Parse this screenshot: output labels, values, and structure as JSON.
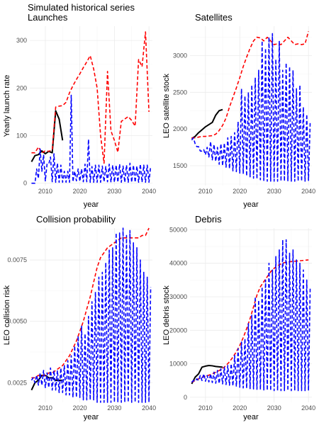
{
  "figure": {
    "title": "Simulated historical series"
  },
  "colors": {
    "historical": "#000000",
    "optimal": "#ff0000",
    "sim": "#0000ff"
  },
  "chart_data": [
    {
      "id": "launches",
      "type": "line",
      "title": "Launches",
      "xlabel": "year",
      "ylabel": "Yearly launch rate",
      "xlim": [
        2005.5,
        2041
      ],
      "ylim": [
        -5,
        330
      ],
      "xticks": [
        2010,
        2020,
        2030,
        2040
      ],
      "yticks": [
        0,
        100,
        200,
        300
      ],
      "series": [
        {
          "role": "historical",
          "style": "solid",
          "x": [
            2006,
            2007,
            2008,
            2009,
            2010,
            2011,
            2012,
            2013,
            2014,
            2015
          ],
          "y": [
            45,
            58,
            60,
            68,
            62,
            67,
            64,
            152,
            135,
            90
          ]
        },
        {
          "role": "optimal",
          "style": "dashed",
          "x": [
            2006,
            2007,
            2008,
            2009,
            2010,
            2011,
            2012,
            2013,
            2014,
            2015,
            2016,
            2017,
            2018,
            2019,
            2020,
            2021,
            2022,
            2023,
            2024,
            2025,
            2026,
            2027,
            2028,
            2029,
            2030,
            2031,
            2032,
            2033,
            2034,
            2035,
            2036,
            2037,
            2038,
            2039,
            2040
          ],
          "y": [
            64,
            64,
            76,
            64,
            68,
            67,
            70,
            160,
            162,
            163,
            170,
            190,
            205,
            218,
            230,
            243,
            255,
            268,
            240,
            200,
            100,
            42,
            235,
            110,
            90,
            65,
            130,
            135,
            140,
            132,
            120,
            260,
            245,
            318,
            150
          ]
        },
        {
          "role": "sim",
          "style": "dashed",
          "x": [
            2006,
            2007,
            2008,
            2009,
            2010,
            2011,
            2012,
            2013,
            2014,
            2015,
            2016,
            2017,
            2018,
            2019,
            2020,
            2021,
            2022,
            2023,
            2024,
            2025,
            2026,
            2027,
            2028,
            2029,
            2030,
            2031,
            2032,
            2033,
            2034,
            2035,
            2036,
            2037,
            2038,
            2039,
            2040
          ],
          "y_low": [
            0,
            0,
            10,
            25,
            5,
            40,
            3,
            2,
            2,
            2,
            2,
            2,
            3,
            5,
            4,
            3,
            3,
            2,
            2,
            2,
            2,
            3,
            3,
            2,
            2,
            2,
            2,
            2,
            2,
            2,
            2,
            2,
            2,
            2,
            2
          ],
          "y_high": [
            0,
            30,
            72,
            60,
            40,
            55,
            62,
            42,
            38,
            25,
            25,
            185,
            25,
            30,
            30,
            40,
            92,
            35,
            38,
            38,
            36,
            35,
            40,
            38,
            38,
            40,
            36,
            38,
            42,
            38,
            36,
            40,
            38,
            38,
            36
          ]
        }
      ]
    },
    {
      "id": "satellites",
      "type": "line",
      "title": "Satellites",
      "xlabel": "year",
      "ylabel": "LEO satellite stock",
      "xlim": [
        2005.5,
        2041
      ],
      "ylim": [
        1230,
        3400
      ],
      "xticks": [
        2010,
        2020,
        2030,
        2040
      ],
      "yticks": [
        1500,
        2000,
        2500,
        3000
      ],
      "series": [
        {
          "role": "historical",
          "style": "solid",
          "x": [
            2006,
            2007,
            2008,
            2009,
            2010,
            2011,
            2012,
            2013,
            2014,
            2015
          ],
          "y": [
            1870,
            1900,
            1950,
            1990,
            2030,
            2060,
            2090,
            2190,
            2250,
            2265
          ]
        },
        {
          "role": "optimal",
          "style": "dashed",
          "x": [
            2006,
            2007,
            2008,
            2009,
            2010,
            2011,
            2012,
            2013,
            2014,
            2015,
            2016,
            2017,
            2018,
            2019,
            2020,
            2021,
            2022,
            2023,
            2024,
            2025,
            2026,
            2027,
            2028,
            2029,
            2030,
            2031,
            2032,
            2033,
            2034,
            2035,
            2036,
            2037,
            2038,
            2039,
            2040
          ],
          "y": [
            1880,
            1880,
            1890,
            1900,
            1900,
            1905,
            1910,
            1930,
            1980,
            2050,
            2150,
            2300,
            2430,
            2560,
            2700,
            2850,
            2980,
            3100,
            3200,
            3250,
            3240,
            3200,
            3250,
            3200,
            3150,
            3160,
            3150,
            3200,
            3250,
            3200,
            3150,
            3160,
            3150,
            3160,
            3330
          ]
        },
        {
          "role": "sim",
          "style": "dashed",
          "x": [
            2006,
            2007,
            2008,
            2009,
            2010,
            2011,
            2012,
            2013,
            2014,
            2015,
            2016,
            2017,
            2018,
            2019,
            2020,
            2021,
            2022,
            2023,
            2024,
            2025,
            2026,
            2027,
            2028,
            2029,
            2030,
            2031,
            2032,
            2033,
            2034,
            2035,
            2036,
            2037,
            2038,
            2039,
            2040
          ],
          "y_low": [
            1850,
            1800,
            1760,
            1700,
            1650,
            1620,
            1580,
            1560,
            1520,
            1500,
            1480,
            1460,
            1430,
            1420,
            1400,
            1390,
            1360,
            1350,
            1330,
            1320,
            1310,
            1300,
            1290,
            1290,
            1290,
            1290,
            1290,
            1290,
            1290,
            1290,
            1290,
            1290,
            1290,
            1290,
            1300
          ],
          "y_high": [
            1880,
            1760,
            1700,
            1720,
            1750,
            1830,
            1790,
            1750,
            1800,
            1810,
            1880,
            1900,
            1950,
            2100,
            2550,
            2450,
            2500,
            2600,
            2700,
            2800,
            3200,
            3100,
            3250,
            3300,
            2950,
            3200,
            2800,
            2900,
            2850,
            2800,
            2550,
            2600,
            2300,
            2200,
            2100
          ]
        }
      ]
    },
    {
      "id": "collision",
      "type": "line",
      "title": "Collision probability",
      "xlabel": "year",
      "ylabel": "LEO collision risk",
      "xlim": [
        2005.5,
        2041
      ],
      "ylim": [
        0.0017,
        0.0088
      ],
      "xticks": [
        2010,
        2020,
        2030,
        2040
      ],
      "yticks": [
        0.0025,
        0.005,
        0.0075
      ],
      "ytick_labels": [
        "0.0025",
        "0.0050",
        "0.0075"
      ],
      "series": [
        {
          "role": "historical",
          "style": "solid",
          "x": [
            2006,
            2007,
            2008,
            2009,
            2010,
            2011,
            2012,
            2013,
            2014,
            2015
          ],
          "y": [
            0.0022,
            0.0025,
            0.0026,
            0.0028,
            0.0028,
            0.0027,
            0.0027,
            0.0026,
            0.0026,
            0.0026
          ]
        },
        {
          "role": "optimal",
          "style": "dashed",
          "x": [
            2006,
            2007,
            2008,
            2009,
            2010,
            2011,
            2012,
            2013,
            2014,
            2015,
            2016,
            2017,
            2018,
            2019,
            2020,
            2021,
            2022,
            2023,
            2024,
            2025,
            2026,
            2027,
            2028,
            2029,
            2030,
            2031,
            2032,
            2033,
            2034,
            2035,
            2036,
            2037,
            2038,
            2039,
            2040
          ],
          "y": [
            0.0027,
            0.0027,
            0.0028,
            0.0028,
            0.0028,
            0.0029,
            0.0029,
            0.003,
            0.0031,
            0.0032,
            0.0034,
            0.0036,
            0.0039,
            0.0042,
            0.0046,
            0.005,
            0.0055,
            0.006,
            0.0066,
            0.0072,
            0.0076,
            0.0078,
            0.008,
            0.0081,
            0.0082,
            0.0083,
            0.0084,
            0.0084,
            0.0084,
            0.0084,
            0.0084,
            0.0084,
            0.0085,
            0.0085,
            0.0088
          ]
        },
        {
          "role": "sim",
          "style": "dashed",
          "x": [
            2006,
            2007,
            2008,
            2009,
            2010,
            2011,
            2012,
            2013,
            2014,
            2015,
            2016,
            2017,
            2018,
            2019,
            2020,
            2021,
            2022,
            2023,
            2024,
            2025,
            2026,
            2027,
            2028,
            2029,
            2030,
            2031,
            2032,
            2033,
            2034,
            2035,
            2036,
            2037,
            2038,
            2039,
            2040
          ],
          "y_low": [
            0.0026,
            0.0025,
            0.0024,
            0.0024,
            0.0023,
            0.0023,
            0.0022,
            0.0022,
            0.0021,
            0.0021,
            0.002,
            0.002,
            0.0019,
            0.0019,
            0.0019,
            0.0018,
            0.0018,
            0.0018,
            0.0018,
            0.0017,
            0.0017,
            0.0017,
            0.0017,
            0.0017,
            0.0017,
            0.0017,
            0.0017,
            0.0017,
            0.0017,
            0.0017,
            0.0017,
            0.0017,
            0.0017,
            0.0017,
            0.0017
          ],
          "y_high": [
            0.0027,
            0.0028,
            0.0029,
            0.003,
            0.0029,
            0.0031,
            0.003,
            0.003,
            0.0031,
            0.0032,
            0.0034,
            0.0036,
            0.004,
            0.0044,
            0.0048,
            0.0045,
            0.0052,
            0.0058,
            0.0062,
            0.0068,
            0.007,
            0.0074,
            0.0079,
            0.008,
            0.0086,
            0.0086,
            0.0088,
            0.0085,
            0.0087,
            0.0082,
            0.008,
            0.0075,
            0.007,
            0.0068,
            0.0064
          ]
        }
      ]
    },
    {
      "id": "debris",
      "type": "line",
      "title": "Debris",
      "xlabel": "year",
      "ylabel": "LEO debris stock",
      "xlim": [
        2005.5,
        2041
      ],
      "ylim": [
        -1500,
        50500
      ],
      "xticks": [
        2010,
        2020,
        2030,
        2040
      ],
      "yticks": [
        0,
        10000,
        20000,
        30000,
        40000,
        50000
      ],
      "series": [
        {
          "role": "historical",
          "style": "solid",
          "x": [
            2006,
            2007,
            2008,
            2009,
            2010,
            2011,
            2012,
            2013,
            2014,
            2015
          ],
          "y": [
            4000,
            6000,
            7000,
            9000,
            9300,
            9500,
            9400,
            9200,
            9100,
            9000
          ]
        },
        {
          "role": "optimal",
          "style": "dashed",
          "x": [
            2006,
            2007,
            2008,
            2009,
            2010,
            2011,
            2012,
            2013,
            2014,
            2015,
            2016,
            2017,
            2018,
            2019,
            2020,
            2021,
            2022,
            2023,
            2024,
            2025,
            2026,
            2027,
            2028,
            2029,
            2030,
            2031,
            2032,
            2033,
            2034,
            2035,
            2036,
            2037,
            2038,
            2039,
            2040
          ],
          "y": [
            4500,
            5000,
            5500,
            6000,
            6300,
            6600,
            7000,
            7500,
            8000,
            8600,
            9500,
            10600,
            12000,
            13600,
            15500,
            17800,
            20500,
            23500,
            27000,
            30500,
            33000,
            34500,
            36000,
            37500,
            38500,
            39300,
            39800,
            40200,
            40400,
            40500,
            40600,
            40700,
            40800,
            40900,
            41000
          ]
        },
        {
          "role": "sim",
          "style": "dashed",
          "x": [
            2006,
            2007,
            2008,
            2009,
            2010,
            2011,
            2012,
            2013,
            2014,
            2015,
            2016,
            2017,
            2018,
            2019,
            2020,
            2021,
            2022,
            2023,
            2024,
            2025,
            2026,
            2027,
            2028,
            2029,
            2030,
            2031,
            2032,
            2033,
            2034,
            2035,
            2036,
            2037,
            2038,
            2039,
            2040
          ],
          "y_low": [
            4500,
            4800,
            5000,
            5000,
            4800,
            4600,
            4400,
            4200,
            4100,
            4000,
            3800,
            3600,
            3400,
            3200,
            3000,
            2800,
            2700,
            2600,
            2500,
            2400,
            2300,
            2200,
            2100,
            2000,
            2000,
            2000,
            2000,
            2000,
            2000,
            2000,
            2000,
            2000,
            2000,
            2000,
            2000
          ],
          "y_high": [
            5000,
            5500,
            6500,
            7000,
            6500,
            7000,
            7500,
            8000,
            8500,
            9000,
            9500,
            10000,
            12500,
            14500,
            16500,
            17500,
            22000,
            24500,
            30000,
            29000,
            33000,
            35000,
            40000,
            38000,
            42000,
            44000,
            47000,
            47000,
            43000,
            44000,
            41000,
            40000,
            38000,
            35000,
            33000
          ]
        }
      ]
    }
  ]
}
